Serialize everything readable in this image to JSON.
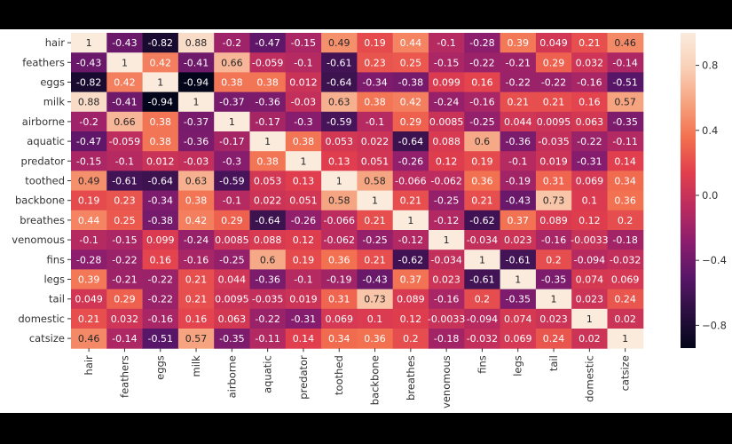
{
  "chart_data": {
    "type": "heatmap",
    "title": "",
    "xlabel": "",
    "ylabel": "",
    "row_labels": [
      "hair",
      "feathers",
      "eggs",
      "milk",
      "airborne",
      "aquatic",
      "predator",
      "toothed",
      "backbone",
      "breathes",
      "venomous",
      "fins",
      "legs",
      "tail",
      "domestic",
      "catsize"
    ],
    "col_labels": [
      "hair",
      "feathers",
      "eggs",
      "milk",
      "airborne",
      "aquatic",
      "predator",
      "toothed",
      "backbone",
      "breathes",
      "venomous",
      "fins",
      "legs",
      "tail",
      "domestic",
      "catsize"
    ],
    "cell_text": [
      [
        "1",
        "-0.43",
        "-0.82",
        "0.88",
        "-0.2",
        "-0.47",
        "-0.15",
        "0.49",
        "0.19",
        "0.44",
        "-0.1",
        "-0.28",
        "0.39",
        "0.049",
        "0.21",
        "0.46"
      ],
      [
        "-0.43",
        "1",
        "0.42",
        "-0.41",
        "0.66",
        "-0.059",
        "-0.1",
        "-0.61",
        "0.23",
        "0.25",
        "-0.15",
        "-0.22",
        "-0.21",
        "0.29",
        "0.032",
        "-0.14"
      ],
      [
        "-0.82",
        "0.42",
        "1",
        "-0.94",
        "0.38",
        "0.38",
        "0.012",
        "-0.64",
        "-0.34",
        "-0.38",
        "0.099",
        "0.16",
        "-0.22",
        "-0.22",
        "-0.16",
        "-0.51"
      ],
      [
        "0.88",
        "-0.41",
        "-0.94",
        "1",
        "-0.37",
        "-0.36",
        "-0.03",
        "0.63",
        "0.38",
        "0.42",
        "-0.24",
        "-0.16",
        "0.21",
        "0.21",
        "0.16",
        "0.57"
      ],
      [
        "-0.2",
        "0.66",
        "0.38",
        "-0.37",
        "1",
        "-0.17",
        "-0.3",
        "-0.59",
        "-0.1",
        "0.29",
        "0.0085",
        "-0.25",
        "0.044",
        "0.0095",
        "0.063",
        "-0.35"
      ],
      [
        "-0.47",
        "-0.059",
        "0.38",
        "-0.36",
        "-0.17",
        "1",
        "0.38",
        "0.053",
        "0.022",
        "-0.64",
        "0.088",
        "0.6",
        "-0.36",
        "-0.035",
        "-0.22",
        "-0.11"
      ],
      [
        "-0.15",
        "-0.1",
        "0.012",
        "-0.03",
        "-0.3",
        "0.38",
        "1",
        "0.13",
        "0.051",
        "-0.26",
        "0.12",
        "0.19",
        "-0.1",
        "0.019",
        "-0.31",
        "0.14"
      ],
      [
        "0.49",
        "-0.61",
        "-0.64",
        "0.63",
        "-0.59",
        "0.053",
        "0.13",
        "1",
        "0.58",
        "-0.066",
        "-0.062",
        "0.36",
        "-0.19",
        "0.31",
        "0.069",
        "0.34"
      ],
      [
        "0.19",
        "0.23",
        "-0.34",
        "0.38",
        "-0.1",
        "0.022",
        "0.051",
        "0.58",
        "1",
        "0.21",
        "-0.25",
        "0.21",
        "-0.43",
        "0.73",
        "0.1",
        "0.36"
      ],
      [
        "0.44",
        "0.25",
        "-0.38",
        "0.42",
        "0.29",
        "-0.64",
        "-0.26",
        "-0.066",
        "0.21",
        "1",
        "-0.12",
        "-0.62",
        "0.37",
        "0.089",
        "0.12",
        "0.2"
      ],
      [
        "-0.1",
        "-0.15",
        "0.099",
        "-0.24",
        "0.0085",
        "0.088",
        "0.12",
        "-0.062",
        "-0.25",
        "-0.12",
        "1",
        "-0.034",
        "0.023",
        "-0.16",
        "-0.0033",
        "-0.18"
      ],
      [
        "-0.28",
        "-0.22",
        "0.16",
        "-0.16",
        "-0.25",
        "0.6",
        "0.19",
        "0.36",
        "0.21",
        "-0.62",
        "-0.034",
        "1",
        "-0.61",
        "0.2",
        "-0.094",
        "-0.032"
      ],
      [
        "0.39",
        "-0.21",
        "-0.22",
        "0.21",
        "0.044",
        "-0.36",
        "-0.1",
        "-0.19",
        "-0.43",
        "0.37",
        "0.023",
        "-0.61",
        "1",
        "-0.35",
        "0.074",
        "0.069"
      ],
      [
        "0.049",
        "0.29",
        "-0.22",
        "0.21",
        "0.0095",
        "-0.035",
        "0.019",
        "0.31",
        "0.73",
        "0.089",
        "-0.16",
        "0.2",
        "-0.35",
        "1",
        "0.023",
        "0.24"
      ],
      [
        "0.21",
        "0.032",
        "-0.16",
        "0.16",
        "0.063",
        "-0.22",
        "-0.31",
        "0.069",
        "0.1",
        "0.12",
        "-0.0033",
        "-0.094",
        "0.074",
        "0.023",
        "1",
        "0.02"
      ],
      [
        "0.46",
        "-0.14",
        "-0.51",
        "0.57",
        "-0.35",
        "-0.11",
        "0.14",
        "0.34",
        "0.36",
        "0.2",
        "-0.18",
        "-0.032",
        "0.069",
        "0.24",
        "0.02",
        "1"
      ]
    ],
    "colorbar": {
      "ticks": [
        0.8,
        0.4,
        0.0,
        -0.4,
        -0.8
      ],
      "tick_labels": [
        "0.8",
        "0.4",
        "0.0",
        "−0.4",
        "−0.8"
      ],
      "range": [
        -0.94,
        1.0
      ]
    },
    "colormap": [
      "#03051a",
      "#2a0f3f",
      "#581668",
      "#8a1d6e",
      "#ba2b5f",
      "#e13f4d",
      "#f26f4f",
      "#f6a37f",
      "#f9d0b7",
      "#faebdd"
    ]
  }
}
